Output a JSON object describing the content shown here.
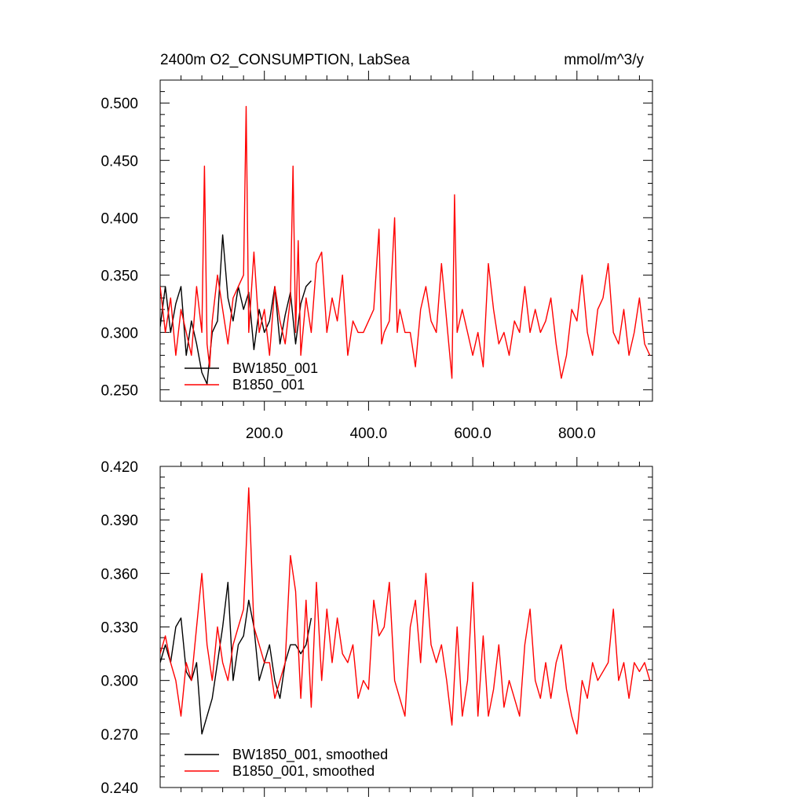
{
  "figure": {
    "title_left": "2400m O2_CONSUMPTION, LabSea",
    "title_right": "mmol/m^3/y"
  },
  "chart_data": [
    {
      "type": "line",
      "xlim": [
        0,
        945
      ],
      "ylim": [
        0.24,
        0.52
      ],
      "yticks": [
        0.25,
        0.3,
        0.35,
        0.4,
        0.45,
        0.5
      ],
      "ytick_labels": [
        "0.250",
        "0.300",
        "0.350",
        "0.400",
        "0.450",
        "0.500"
      ],
      "xticks": [
        200,
        400,
        600,
        800
      ],
      "xtick_labels": [
        "200.0",
        "400.0",
        "600.0",
        "800.0"
      ],
      "legend_position": "bottom-left",
      "series": [
        {
          "name": "BW1850_001",
          "color": "#000000",
          "x": [
            0,
            10,
            20,
            30,
            40,
            50,
            60,
            70,
            80,
            90,
            100,
            110,
            120,
            130,
            140,
            150,
            160,
            170,
            180,
            190,
            200,
            210,
            220,
            230,
            240,
            250,
            260,
            270,
            280,
            290
          ],
          "y": [
            0.305,
            0.34,
            0.3,
            0.325,
            0.34,
            0.28,
            0.31,
            0.29,
            0.265,
            0.255,
            0.3,
            0.31,
            0.385,
            0.33,
            0.31,
            0.34,
            0.32,
            0.335,
            0.285,
            0.32,
            0.3,
            0.31,
            0.34,
            0.29,
            0.315,
            0.335,
            0.29,
            0.325,
            0.34,
            0.345
          ]
        },
        {
          "name": "B1850_001",
          "color": "#ff0000",
          "x": [
            0,
            10,
            20,
            30,
            40,
            50,
            60,
            70,
            80,
            85,
            90,
            95,
            100,
            110,
            120,
            130,
            140,
            150,
            160,
            165,
            170,
            180,
            190,
            200,
            210,
            220,
            230,
            240,
            250,
            255,
            260,
            265,
            270,
            280,
            290,
            300,
            310,
            320,
            330,
            340,
            350,
            360,
            370,
            380,
            390,
            400,
            410,
            420,
            425,
            430,
            440,
            450,
            455,
            460,
            470,
            480,
            490,
            500,
            510,
            520,
            530,
            540,
            550,
            560,
            565,
            570,
            580,
            590,
            600,
            610,
            620,
            630,
            640,
            650,
            660,
            670,
            680,
            690,
            700,
            710,
            720,
            730,
            740,
            750,
            760,
            770,
            780,
            790,
            800,
            810,
            820,
            830,
            840,
            850,
            860,
            870,
            880,
            890,
            900,
            910,
            920,
            930,
            940
          ],
          "y": [
            0.34,
            0.3,
            0.33,
            0.28,
            0.32,
            0.3,
            0.28,
            0.34,
            0.3,
            0.445,
            0.29,
            0.27,
            0.31,
            0.35,
            0.32,
            0.29,
            0.33,
            0.34,
            0.35,
            0.497,
            0.3,
            0.37,
            0.3,
            0.32,
            0.28,
            0.34,
            0.31,
            0.29,
            0.33,
            0.445,
            0.3,
            0.38,
            0.28,
            0.33,
            0.3,
            0.36,
            0.37,
            0.3,
            0.33,
            0.31,
            0.35,
            0.28,
            0.31,
            0.3,
            0.3,
            0.31,
            0.32,
            0.39,
            0.29,
            0.3,
            0.31,
            0.4,
            0.3,
            0.32,
            0.3,
            0.3,
            0.27,
            0.32,
            0.34,
            0.31,
            0.3,
            0.36,
            0.31,
            0.26,
            0.42,
            0.3,
            0.32,
            0.3,
            0.28,
            0.3,
            0.27,
            0.36,
            0.32,
            0.29,
            0.3,
            0.28,
            0.31,
            0.3,
            0.34,
            0.3,
            0.32,
            0.3,
            0.31,
            0.33,
            0.29,
            0.26,
            0.28,
            0.32,
            0.31,
            0.35,
            0.3,
            0.28,
            0.32,
            0.33,
            0.36,
            0.3,
            0.29,
            0.32,
            0.28,
            0.3,
            0.33,
            0.29,
            0.28
          ]
        }
      ]
    },
    {
      "type": "line",
      "xlim": [
        0,
        945
      ],
      "ylim": [
        0.24,
        0.42
      ],
      "yticks": [
        0.24,
        0.27,
        0.3,
        0.33,
        0.36,
        0.39,
        0.42
      ],
      "ytick_labels": [
        "0.240",
        "0.270",
        "0.300",
        "0.330",
        "0.360",
        "0.390",
        "0.420"
      ],
      "legend_position": "bottom-left",
      "series": [
        {
          "name": "BW1850_001, smoothed",
          "color": "#000000",
          "x": [
            0,
            10,
            20,
            30,
            40,
            50,
            60,
            70,
            80,
            90,
            100,
            110,
            120,
            130,
            140,
            150,
            160,
            170,
            180,
            190,
            200,
            210,
            220,
            230,
            240,
            250,
            260,
            270,
            280,
            290
          ],
          "y": [
            0.31,
            0.32,
            0.31,
            0.33,
            0.335,
            0.305,
            0.3,
            0.31,
            0.27,
            0.28,
            0.29,
            0.31,
            0.33,
            0.355,
            0.3,
            0.32,
            0.325,
            0.345,
            0.33,
            0.3,
            0.31,
            0.32,
            0.3,
            0.29,
            0.31,
            0.32,
            0.32,
            0.315,
            0.32,
            0.335
          ]
        },
        {
          "name": "B1850_001, smoothed",
          "color": "#ff0000",
          "x": [
            0,
            10,
            20,
            30,
            40,
            50,
            60,
            70,
            80,
            90,
            100,
            110,
            120,
            130,
            140,
            150,
            160,
            170,
            180,
            190,
            200,
            210,
            220,
            230,
            240,
            250,
            260,
            270,
            280,
            290,
            300,
            310,
            320,
            330,
            340,
            350,
            360,
            370,
            380,
            390,
            400,
            410,
            420,
            430,
            440,
            450,
            460,
            470,
            480,
            490,
            500,
            510,
            520,
            530,
            540,
            550,
            560,
            570,
            580,
            590,
            600,
            610,
            620,
            630,
            640,
            650,
            660,
            670,
            680,
            690,
            700,
            710,
            720,
            730,
            740,
            750,
            760,
            770,
            780,
            790,
            800,
            810,
            820,
            830,
            840,
            850,
            860,
            870,
            880,
            890,
            900,
            910,
            920,
            930,
            940
          ],
          "y": [
            0.315,
            0.325,
            0.31,
            0.3,
            0.28,
            0.31,
            0.3,
            0.33,
            0.36,
            0.32,
            0.3,
            0.33,
            0.31,
            0.3,
            0.32,
            0.33,
            0.34,
            0.408,
            0.33,
            0.32,
            0.31,
            0.31,
            0.29,
            0.3,
            0.31,
            0.37,
            0.35,
            0.29,
            0.345,
            0.285,
            0.355,
            0.3,
            0.34,
            0.31,
            0.335,
            0.315,
            0.31,
            0.32,
            0.29,
            0.3,
            0.295,
            0.345,
            0.325,
            0.33,
            0.355,
            0.3,
            0.29,
            0.28,
            0.33,
            0.345,
            0.31,
            0.36,
            0.32,
            0.31,
            0.32,
            0.3,
            0.275,
            0.33,
            0.28,
            0.3,
            0.355,
            0.28,
            0.325,
            0.28,
            0.295,
            0.32,
            0.285,
            0.3,
            0.29,
            0.28,
            0.32,
            0.34,
            0.3,
            0.29,
            0.31,
            0.29,
            0.31,
            0.32,
            0.295,
            0.28,
            0.27,
            0.3,
            0.29,
            0.31,
            0.3,
            0.305,
            0.31,
            0.34,
            0.3,
            0.31,
            0.29,
            0.31,
            0.305,
            0.31,
            0.3
          ]
        }
      ]
    }
  ]
}
